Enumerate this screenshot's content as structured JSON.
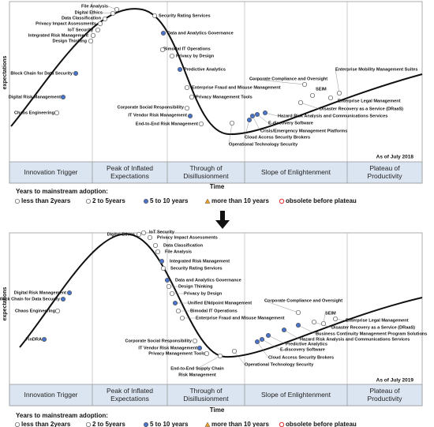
{
  "panels": [
    {
      "y_axis_label": "expectations",
      "x_axis_label": "Time",
      "as_of": "As of July 2018",
      "phases": [
        [
          "Innovation Trigger"
        ],
        [
          "Peak of Inflated",
          "Expectations"
        ],
        [
          "Through of",
          "Disillusionment"
        ],
        [
          "Slope of Enlightenment"
        ],
        [
          "Plateau of",
          "Productivity"
        ]
      ],
      "technologies": [
        "File Analysis",
        "Digital Ethics",
        "Data Classification",
        "Privacy Impact Assessments",
        "IoT Security",
        "Integrated Risk Management",
        "Design Thinking",
        "Block Chain for Data Security",
        "Digital Risk Management",
        "Chaos Engineering",
        "Security Rating Services",
        "Data and Analytics Governance",
        "Bimodal IT Operations",
        "Privacy by Design",
        "Predictive Analytics",
        "Enterprise Fraud and Misuse Management",
        "Privacy Management Tools",
        "Corporate Social Responsibility",
        "IT Vendor Risk Management",
        "End-to-End Risk Management",
        "Operational Technology Security",
        "Cloud Access Security Brokers",
        "Crisis/Emergency Management Platforms",
        "E-discovery Software",
        "Hazard Risk Analysis and Communications Services",
        "Disaster Recovery as a Service (DRaaS)",
        "Enterprise Legal Management",
        "SEIM",
        "Corporate Compliance and Oversight",
        "Enterprise Mobility Management Suites"
      ],
      "legend": {
        "title": "Years to mainstream adoption:",
        "items": [
          "less than 2years",
          "2 to 5years",
          "5 to 10 years",
          "more than 10 years",
          "obsolete before plateau"
        ]
      }
    },
    {
      "y_axis_label": "expectations",
      "x_axis_label": "Time",
      "as_of": "As of July 2019",
      "phases": [
        [
          "Innovation Trigger"
        ],
        [
          "Peak of Inflated",
          "Expectations"
        ],
        [
          "Through of",
          "Disillusionment"
        ],
        [
          "Slope of Enlightenment"
        ],
        [
          "Plateau of",
          "Productivity"
        ]
      ],
      "technologies": [
        "Digital Ethics",
        "Digital Risk Management",
        "Block Chain for Data Security",
        "Chaos Engineering",
        "FinDRA",
        "IoT Security",
        "Privacy Impact Assessments",
        "Data Classification",
        "File Analysis",
        "Integrated Risk Management",
        "Security Rating Services",
        "Data and Analytics Governance",
        "Design Thinking",
        "Privacy by Design",
        "Unified ENdpoint Management",
        "Bimodal IT Operations",
        "Enterprise Fraud and Misuse Management",
        "Corporate Social Responsibility",
        "IT Vendor Risk Management",
        "Privacy Management Tools",
        [
          "End-to-End Supply Chain",
          "Risk Management"
        ],
        "Operational Technology Security",
        "Cloud Access Security Brokers",
        "E-discovery Software",
        "Predictive Analytics",
        "Hazard Risk Analysis and Communications Services",
        "Business Continuity Management Program Solutions",
        "Disaster Recovery as a Service (DRaaS)",
        "Enterprise Legal Management",
        "SEIM",
        "Corporate Compliance and Oversight"
      ],
      "legend": {
        "title": "Years to mainstream adoption:",
        "items": [
          "less than 2years",
          "2 to 5years",
          "5 to 10 years",
          "more than 10 years",
          "obsolete before plateau"
        ]
      }
    }
  ]
}
